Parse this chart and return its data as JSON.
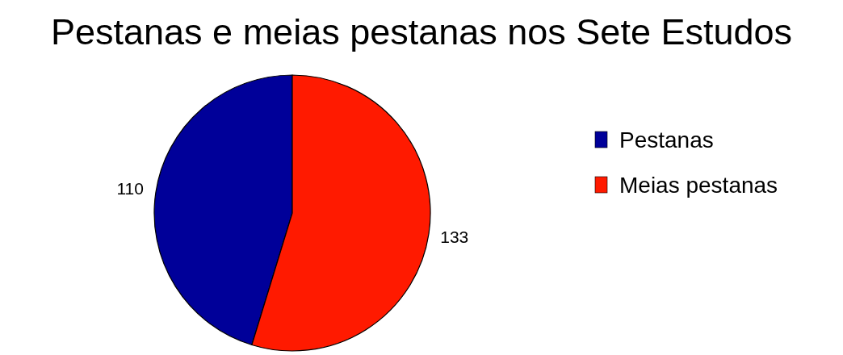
{
  "chart_data": {
    "type": "pie",
    "title": "Pestanas e meias pestanas nos Sete Estudos",
    "categories": [
      "Pestanas",
      "Meias pestanas"
    ],
    "values": [
      110,
      133
    ],
    "colors": [
      "#000099",
      "#ff1a00"
    ],
    "data_labels": true,
    "legend": "right"
  }
}
